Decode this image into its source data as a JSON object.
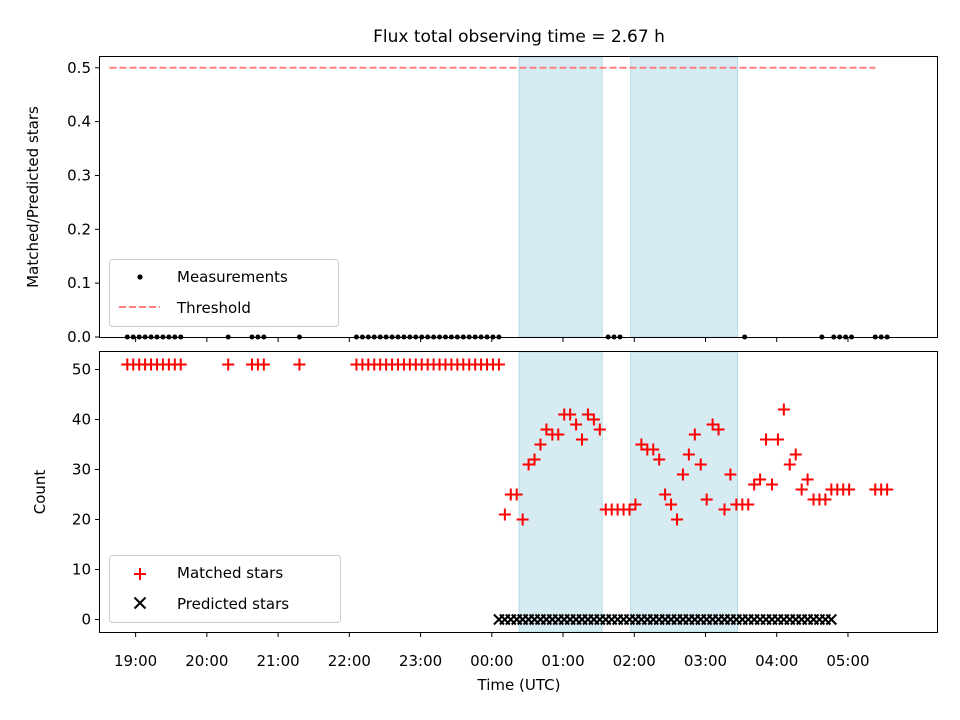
{
  "chart_data": [
    {
      "type": "scatter",
      "title": "Flux total observing time = 2.67 h",
      "ylabel": "Matched/Predicted stars",
      "xlim": [
        "18:30",
        "06:15"
      ],
      "ylim": [
        0,
        0.52
      ],
      "yticks": [
        "0.0",
        "0.1",
        "0.2",
        "0.3",
        "0.4",
        "0.5"
      ],
      "shaded_intervals": [
        [
          "00:23",
          "01:33"
        ],
        [
          "01:57",
          "03:27"
        ]
      ],
      "legend": [
        "Measurements",
        "Threshold"
      ],
      "legend_position": "lower left",
      "series": [
        {
          "name": "Measurements",
          "marker": "dot",
          "color": "#000000",
          "x": [
            "18:53",
            "18:58",
            "19:03",
            "19:08",
            "19:13",
            "19:18",
            "19:23",
            "19:28",
            "19:33",
            "19:38",
            "20:18",
            "20:38",
            "20:43",
            "20:48",
            "21:18",
            "22:06",
            "22:11",
            "22:16",
            "22:21",
            "22:26",
            "22:31",
            "22:36",
            "22:41",
            "22:46",
            "22:51",
            "22:56",
            "23:01",
            "23:06",
            "23:11",
            "23:16",
            "23:21",
            "23:26",
            "23:31",
            "23:36",
            "23:41",
            "23:46",
            "23:51",
            "23:56",
            "00:01",
            "00:06",
            "01:38",
            "01:43",
            "01:48",
            "03:33",
            "04:38",
            "04:48",
            "04:53",
            "04:58",
            "05:03",
            "05:23",
            "05:28",
            "05:33"
          ],
          "y": [
            0,
            0,
            0,
            0,
            0,
            0,
            0,
            0,
            0,
            0,
            0,
            0,
            0,
            0,
            0,
            0,
            0,
            0,
            0,
            0,
            0,
            0,
            0,
            0,
            0,
            0,
            0,
            0,
            0,
            0,
            0,
            0,
            0,
            0,
            0,
            0,
            0,
            0,
            0,
            0,
            0,
            0,
            0,
            0,
            0,
            0,
            0,
            0,
            0,
            0,
            0,
            0
          ]
        },
        {
          "name": "Threshold",
          "style": "dashed",
          "color": "#ff7f7f",
          "x": [
            "18:38",
            "05:23"
          ],
          "y": [
            0.5,
            0.5
          ]
        }
      ]
    },
    {
      "type": "scatter",
      "xlabel": "Time (UTC)",
      "ylabel": "Count",
      "xlim": [
        "18:30",
        "06:15"
      ],
      "ylim": [
        -2.5,
        53.5
      ],
      "xticks": [
        "19:00",
        "20:00",
        "21:00",
        "22:00",
        "23:00",
        "00:00",
        "01:00",
        "02:00",
        "03:00",
        "04:00",
        "05:00"
      ],
      "yticks": [
        "0",
        "10",
        "20",
        "30",
        "40",
        "50"
      ],
      "shaded_intervals": [
        [
          "00:23",
          "01:33"
        ],
        [
          "01:57",
          "03:27"
        ]
      ],
      "legend": [
        "Matched stars",
        "Predicted stars"
      ],
      "legend_position": "lower left",
      "series": [
        {
          "name": "Matched stars",
          "marker": "plus",
          "color": "#ff0000",
          "x": [
            "18:53",
            "18:58",
            "19:03",
            "19:08",
            "19:13",
            "19:18",
            "19:23",
            "19:28",
            "19:33",
            "19:38",
            "20:18",
            "20:38",
            "20:43",
            "20:48",
            "21:18",
            "22:06",
            "22:11",
            "22:16",
            "22:21",
            "22:26",
            "22:31",
            "22:36",
            "22:41",
            "22:46",
            "22:51",
            "22:56",
            "23:01",
            "23:06",
            "23:11",
            "23:16",
            "23:21",
            "23:26",
            "23:31",
            "23:36",
            "23:41",
            "23:46",
            "23:51",
            "23:56",
            "00:01",
            "00:06",
            "00:11",
            "00:16",
            "00:21",
            "00:26",
            "00:31",
            "00:36",
            "00:41",
            "00:46",
            "00:51",
            "00:56",
            "01:01",
            "01:06",
            "01:11",
            "01:16",
            "01:21",
            "01:26",
            "01:31",
            "01:36",
            "01:41",
            "01:46",
            "01:51",
            "01:56",
            "02:01",
            "02:06",
            "02:11",
            "02:16",
            "02:21",
            "02:26",
            "02:31",
            "02:36",
            "02:41",
            "02:46",
            "02:51",
            "02:56",
            "03:01",
            "03:06",
            "03:11",
            "03:16",
            "03:21",
            "03:26",
            "03:31",
            "03:36",
            "03:41",
            "03:46",
            "03:51",
            "03:56",
            "04:01",
            "04:06",
            "04:11",
            "04:16",
            "04:21",
            "04:26",
            "04:31",
            "04:36",
            "04:41",
            "04:46",
            "04:51",
            "04:56",
            "05:01",
            "05:23",
            "05:28",
            "05:33"
          ],
          "y": [
            51,
            51,
            51,
            51,
            51,
            51,
            51,
            51,
            51,
            51,
            51,
            51,
            51,
            51,
            51,
            51,
            51,
            51,
            51,
            51,
            51,
            51,
            51,
            51,
            51,
            51,
            51,
            51,
            51,
            51,
            51,
            51,
            51,
            51,
            51,
            51,
            51,
            51,
            51,
            51,
            21,
            25,
            25,
            20,
            31,
            32,
            35,
            38,
            37,
            37,
            41,
            41,
            39,
            36,
            41,
            40,
            38,
            22,
            22,
            22,
            22,
            22,
            23,
            35,
            34,
            34,
            32,
            25,
            23,
            20,
            29,
            33,
            37,
            31,
            24,
            39,
            38,
            22,
            29,
            23,
            23,
            23,
            27,
            28,
            36,
            27,
            36,
            42,
            31,
            33,
            26,
            28,
            24,
            24,
            24,
            26,
            26,
            26,
            26,
            26,
            26,
            26
          ]
        },
        {
          "name": "Predicted stars",
          "marker": "x",
          "color": "#000000",
          "x": [
            "00:06",
            "00:11",
            "00:16",
            "00:21",
            "00:26",
            "00:31",
            "00:36",
            "00:41",
            "00:46",
            "00:51",
            "00:56",
            "01:01",
            "01:06",
            "01:11",
            "01:16",
            "01:21",
            "01:26",
            "01:31",
            "01:36",
            "01:41",
            "01:46",
            "01:51",
            "01:56",
            "02:01",
            "02:06",
            "02:11",
            "02:16",
            "02:21",
            "02:26",
            "02:31",
            "02:36",
            "02:41",
            "02:46",
            "02:51",
            "02:56",
            "03:01",
            "03:06",
            "03:11",
            "03:16",
            "03:21",
            "03:26",
            "03:31",
            "03:36",
            "03:41",
            "03:46",
            "03:51",
            "03:56",
            "04:01",
            "04:06",
            "04:11",
            "04:16",
            "04:21",
            "04:26",
            "04:31",
            "04:36",
            "04:41",
            "04:46"
          ],
          "y": [
            0,
            0,
            0,
            0,
            0,
            0,
            0,
            0,
            0,
            0,
            0,
            0,
            0,
            0,
            0,
            0,
            0,
            0,
            0,
            0,
            0,
            0,
            0,
            0,
            0,
            0,
            0,
            0,
            0,
            0,
            0,
            0,
            0,
            0,
            0,
            0,
            0,
            0,
            0,
            0,
            0,
            0,
            0,
            0,
            0,
            0,
            0,
            0,
            0,
            0,
            0,
            0,
            0,
            0,
            0,
            0,
            0
          ]
        }
      ]
    }
  ]
}
